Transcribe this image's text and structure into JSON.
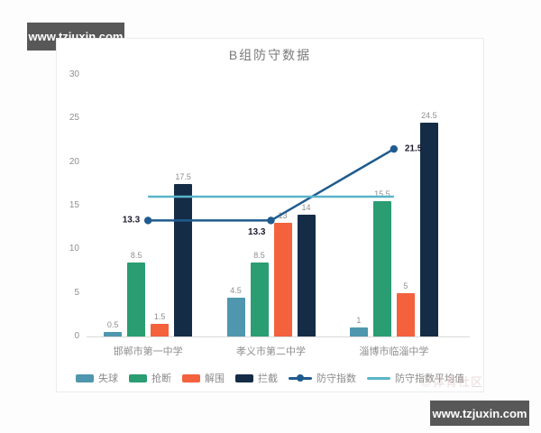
{
  "title": "B组防守数据",
  "watermarks": {
    "top_left": "www.tzjuxin.com",
    "bottom_right": "www.tzjuxin.com",
    "faint": "◎体育社区"
  },
  "colors": {
    "shiqiu_blue": "#4f97ae",
    "qiangduan_green": "#2a9d73",
    "jiewei_orange": "#f3613d",
    "lanjie_navy": "#152c47",
    "index_line_blue": "#1f5b8e",
    "avg_line_teal": "#5ab4c9",
    "axis_text": "#8f8f8f",
    "title_text": "#7a7a7a"
  },
  "chart_data": {
    "type": "bar",
    "title": "B组防守数据",
    "categories": [
      "邯郸市第一中学",
      "孝义市第二中学",
      "淄博市临淄中学"
    ],
    "bar_series": [
      {
        "name": "失球",
        "color": "#4f97ae",
        "values": [
          0.5,
          4.5,
          1
        ]
      },
      {
        "name": "抢断",
        "color": "#2a9d73",
        "values": [
          8.5,
          8.5,
          15.5
        ]
      },
      {
        "name": "解围",
        "color": "#f3613d",
        "values": [
          1.5,
          13,
          5
        ]
      },
      {
        "name": "拦截",
        "color": "#152c47",
        "values": [
          17.5,
          14,
          24.5
        ]
      }
    ],
    "line_series": [
      {
        "name": "防守指数",
        "color": "#1f5b8e",
        "values": [
          13.3,
          13.3,
          21.5
        ],
        "markers": true,
        "labels": [
          "13.3",
          "13.3",
          "21.5"
        ]
      },
      {
        "name": "防守指数平均值",
        "color": "#5ab4c9",
        "values": [
          16.03,
          16.03,
          16.03
        ],
        "markers": false,
        "labels": null
      }
    ],
    "ylim": [
      0,
      30
    ],
    "yticks": [
      0,
      5,
      10,
      15,
      20,
      25,
      30
    ],
    "xlabel": "",
    "ylabel": "",
    "grid": false,
    "legend_position": "bottom"
  }
}
